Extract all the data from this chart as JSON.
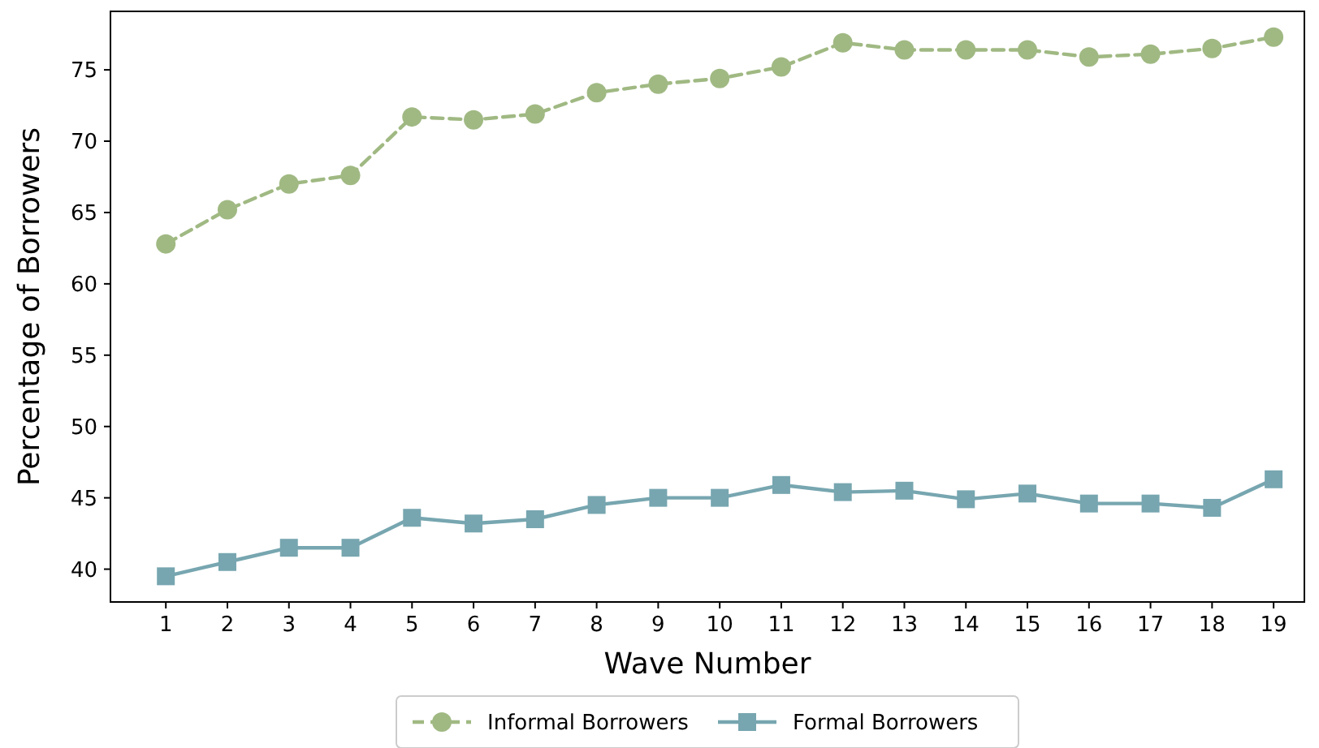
{
  "chart_data": {
    "type": "line",
    "xlabel": "Wave Number",
    "ylabel": "Percentage of Borrowers",
    "x": [
      1,
      2,
      3,
      4,
      5,
      6,
      7,
      8,
      9,
      10,
      11,
      12,
      13,
      14,
      15,
      16,
      17,
      18,
      19
    ],
    "xlim": [
      0.1,
      19.5
    ],
    "xticks": [
      1,
      2,
      3,
      4,
      5,
      6,
      7,
      8,
      9,
      10,
      11,
      12,
      13,
      14,
      15,
      16,
      17,
      18,
      19
    ],
    "ylim": [
      37.7,
      79.1
    ],
    "yticks": [
      40,
      45,
      50,
      55,
      60,
      65,
      70,
      75
    ],
    "grid": false,
    "legend": "bottom",
    "series": [
      {
        "name": "Informal Borrowers",
        "color": "#a0b983",
        "marker": "circle",
        "line_style": "dashed",
        "values": [
          62.8,
          65.2,
          67.0,
          67.6,
          71.7,
          71.5,
          71.9,
          73.4,
          74.0,
          74.4,
          75.2,
          76.9,
          76.4,
          76.4,
          76.4,
          75.9,
          76.1,
          76.5,
          77.3
        ]
      },
      {
        "name": "Formal Borrowers",
        "color": "#77a6b0",
        "marker": "square",
        "line_style": "solid",
        "values": [
          39.5,
          40.5,
          41.5,
          41.5,
          43.6,
          43.2,
          43.5,
          44.5,
          45.0,
          45.0,
          45.9,
          45.4,
          45.5,
          44.9,
          45.3,
          44.6,
          44.6,
          44.3,
          46.3
        ]
      }
    ]
  }
}
